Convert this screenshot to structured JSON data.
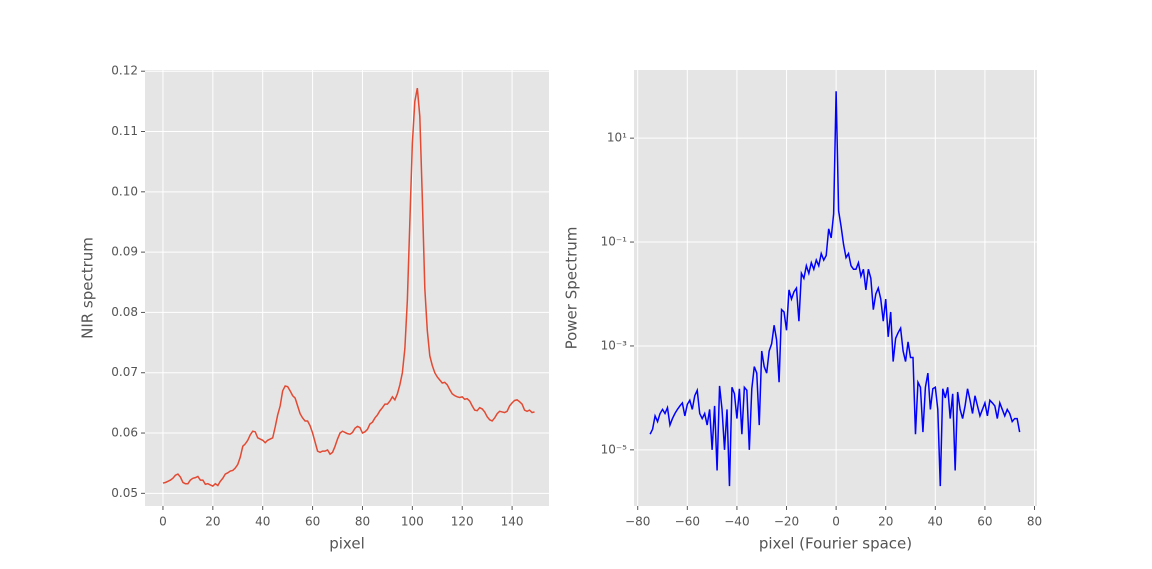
{
  "chart_data": [
    {
      "type": "line",
      "xlabel": "pixel",
      "ylabel": "NIR spectrum",
      "color": "#e24a33",
      "grid": true,
      "yscale": "linear",
      "x": [
        0,
        1,
        2,
        3,
        4,
        5,
        6,
        7,
        8,
        9,
        10,
        11,
        12,
        13,
        14,
        15,
        16,
        17,
        18,
        19,
        20,
        21,
        22,
        23,
        24,
        25,
        26,
        27,
        28,
        29,
        30,
        31,
        32,
        33,
        34,
        35,
        36,
        37,
        38,
        39,
        40,
        41,
        42,
        43,
        44,
        45,
        46,
        47,
        48,
        49,
        50,
        51,
        52,
        53,
        54,
        55,
        56,
        57,
        58,
        59,
        60,
        61,
        62,
        63,
        64,
        65,
        66,
        67,
        68,
        69,
        70,
        71,
        72,
        73,
        74,
        75,
        76,
        77,
        78,
        79,
        80,
        81,
        82,
        83,
        84,
        85,
        86,
        87,
        88,
        89,
        90,
        91,
        92,
        93,
        94,
        95,
        96,
        97,
        98,
        99,
        100,
        101,
        102,
        103,
        104,
        105,
        106,
        107,
        108,
        109,
        110,
        111,
        112,
        113,
        114,
        115,
        116,
        117,
        118,
        119,
        120,
        121,
        122,
        123,
        124,
        125,
        126,
        127,
        128,
        129,
        130,
        131,
        132,
        133,
        134,
        135,
        136,
        137,
        138,
        139,
        140,
        141,
        142,
        143,
        144,
        145,
        146,
        147,
        148,
        149
      ],
      "values": [
        0.0517,
        0.0518,
        0.052,
        0.0522,
        0.0525,
        0.053,
        0.0532,
        0.0527,
        0.0518,
        0.0516,
        0.0516,
        0.0522,
        0.0525,
        0.0526,
        0.0528,
        0.0522,
        0.0522,
        0.0515,
        0.0516,
        0.0514,
        0.0512,
        0.0516,
        0.0513,
        0.052,
        0.0525,
        0.0532,
        0.0534,
        0.0537,
        0.0538,
        0.0542,
        0.0548,
        0.056,
        0.0578,
        0.0582,
        0.0588,
        0.0597,
        0.0603,
        0.0602,
        0.0592,
        0.059,
        0.0588,
        0.0584,
        0.0588,
        0.059,
        0.0592,
        0.061,
        0.063,
        0.0645,
        0.067,
        0.0678,
        0.0677,
        0.067,
        0.0662,
        0.0658,
        0.0645,
        0.0632,
        0.0625,
        0.062,
        0.062,
        0.0612,
        0.06,
        0.0585,
        0.057,
        0.0568,
        0.057,
        0.057,
        0.0572,
        0.0565,
        0.0568,
        0.0578,
        0.059,
        0.06,
        0.0603,
        0.0601,
        0.0599,
        0.0598,
        0.0601,
        0.0608,
        0.0611,
        0.0609,
        0.06,
        0.0602,
        0.0606,
        0.0615,
        0.0618,
        0.0625,
        0.063,
        0.0637,
        0.0642,
        0.0648,
        0.0648,
        0.0653,
        0.066,
        0.0655,
        0.0665,
        0.068,
        0.07,
        0.074,
        0.082,
        0.095,
        0.108,
        0.115,
        0.1172,
        0.1125,
        0.099,
        0.084,
        0.077,
        0.0728,
        0.0712,
        0.07,
        0.0693,
        0.0688,
        0.0683,
        0.0684,
        0.068,
        0.0672,
        0.0665,
        0.0662,
        0.066,
        0.0659,
        0.066,
        0.0656,
        0.0657,
        0.0653,
        0.0645,
        0.0638,
        0.0637,
        0.0642,
        0.064,
        0.0635,
        0.0627,
        0.0622,
        0.062,
        0.0625,
        0.0632,
        0.0636,
        0.0635,
        0.0634,
        0.0636,
        0.0645,
        0.065,
        0.0654,
        0.0655,
        0.0652,
        0.0648,
        0.0638,
        0.0636,
        0.0638,
        0.0634,
        0.0635
      ],
      "xlim": [
        -7.2,
        154.8
      ],
      "ylim": [
        0.0479,
        0.1202
      ],
      "xticks": [
        0,
        20,
        40,
        60,
        80,
        100,
        120,
        140
      ],
      "yticks": [
        0.05,
        0.06,
        0.07,
        0.08,
        0.09,
        {
          "value": 0.1,
          "label": "0.10"
        },
        0.11,
        0.12
      ]
    },
    {
      "type": "line",
      "xlabel": "pixel (Fourier space)",
      "ylabel": "Power Spectrum",
      "color": "#0000ff",
      "grid": true,
      "yscale": "log",
      "x": [
        -75,
        -74,
        -73,
        -72,
        -71,
        -70,
        -69,
        -68,
        -67,
        -66,
        -65,
        -64,
        -63,
        -62,
        -61,
        -60,
        -59,
        -58,
        -57,
        -56,
        -55,
        -54,
        -53,
        -52,
        -51,
        -50,
        -49,
        -48,
        -47,
        -46,
        -45,
        -44,
        -43,
        -42,
        -41,
        -40,
        -39,
        -38,
        -37,
        -36,
        -35,
        -34,
        -33,
        -32,
        -31,
        -30,
        -29,
        -28,
        -27,
        -26,
        -25,
        -24,
        -23,
        -22,
        -21,
        -20,
        -19,
        -18,
        -17,
        -16,
        -15,
        -14,
        -13,
        -12,
        -11,
        -10,
        -9,
        -8,
        -7,
        -6,
        -5,
        -4,
        -3,
        -2,
        -1,
        0,
        1,
        2,
        3,
        4,
        5,
        6,
        7,
        8,
        9,
        10,
        11,
        12,
        13,
        14,
        15,
        16,
        17,
        18,
        19,
        20,
        21,
        22,
        23,
        24,
        25,
        26,
        27,
        28,
        29,
        30,
        31,
        32,
        33,
        34,
        35,
        36,
        37,
        38,
        39,
        40,
        41,
        42,
        43,
        44,
        45,
        46,
        47,
        48,
        49,
        50,
        51,
        52,
        53,
        54,
        55,
        56,
        57,
        58,
        59,
        60,
        61,
        62,
        63,
        64,
        65,
        66,
        67,
        68,
        69,
        70,
        71,
        72,
        73,
        74
      ],
      "values": [
        2e-05,
        2.5e-05,
        4.5e-05,
        3.5e-05,
        5e-05,
        6e-05,
        5e-05,
        6.5e-05,
        3e-05,
        4e-05,
        5e-05,
        6e-05,
        7e-05,
        8e-05,
        4.5e-05,
        7.5e-05,
        9e-05,
        6e-05,
        0.00011,
        0.00014,
        5e-05,
        4e-05,
        5e-05,
        3e-05,
        6e-05,
        1e-05,
        7e-05,
        4e-06,
        0.00017,
        6e-05,
        1e-05,
        6e-05,
        2e-06,
        0.00016,
        0.00012,
        4e-05,
        0.00015,
        2e-05,
        0.00016,
        0.00014,
        1e-05,
        0.00015,
        0.0004,
        0.0003,
        3e-05,
        0.0008,
        0.0004,
        0.0003,
        0.0008,
        0.0011,
        0.0025,
        0.0013,
        0.0002,
        0.005,
        0.0045,
        0.002,
        0.012,
        0.008,
        0.011,
        0.013,
        0.003,
        0.025,
        0.02,
        0.035,
        0.025,
        0.04,
        0.03,
        0.045,
        0.035,
        0.06,
        0.045,
        0.055,
        0.18,
        0.12,
        0.35,
        80,
        0.4,
        0.2,
        0.09,
        0.05,
        0.06,
        0.035,
        0.03,
        0.03,
        0.04,
        0.022,
        0.03,
        0.012,
        0.03,
        0.02,
        0.005,
        0.01,
        0.013,
        0.008,
        0.003,
        0.008,
        0.0015,
        0.0045,
        0.0005,
        0.0014,
        0.0018,
        0.0022,
        0.0008,
        0.0005,
        0.0012,
        0.0006,
        0.0006,
        2e-05,
        0.0002,
        0.00016,
        2.2e-05,
        0.00016,
        0.0003,
        6e-05,
        0.00015,
        0.00016,
        6e-05,
        2e-06,
        0.00015,
        0.0001,
        0.00016,
        4e-05,
        0.00012,
        4e-06,
        0.00013,
        6e-05,
        4e-05,
        7e-05,
        0.00015,
        9e-05,
        5e-05,
        0.00011,
        7e-05,
        4.5e-05,
        6e-05,
        8e-05,
        4.5e-05,
        9e-05,
        8e-05,
        7e-05,
        4e-05,
        8e-05,
        6e-05,
        4.5e-05,
        6e-05,
        5e-05,
        3.5e-05,
        4e-05,
        4e-05,
        2.2e-05
      ],
      "xlim": [
        -81.5,
        81
      ],
      "ylim": [
        8.3e-07,
        205
      ],
      "xticks": [
        {
          "value": -80,
          "label": "−80"
        },
        {
          "value": -60,
          "label": "−60"
        },
        {
          "value": -40,
          "label": "−40"
        },
        {
          "value": -20,
          "label": "−20"
        },
        0,
        20,
        40,
        60,
        80
      ],
      "yticks": [
        {
          "value": 1e-05,
          "label": "10⁻⁵"
        },
        {
          "value": 0.001,
          "label": "10⁻³"
        },
        {
          "value": 0.1,
          "label": "10⁻¹"
        },
        {
          "value": 10,
          "label": "10¹"
        }
      ]
    }
  ]
}
